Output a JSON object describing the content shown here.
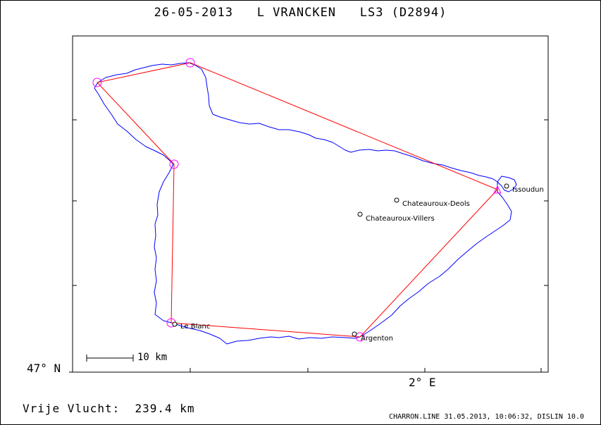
{
  "title": "26-05-2013   L VRANCKEN   LS3 (D2894)",
  "axes": {
    "lat_label": "47° N",
    "lon_label": "2° E"
  },
  "scale_bar": {
    "label": "10 km"
  },
  "distance": "Vrije Vlucht:  239.4 km",
  "footer": "CHARRON.LINE 31.05.2013, 10:06:32, DISLIN 10.0",
  "places": [
    {
      "name": "Issoudun",
      "lat": 46.947,
      "lon": 1.993
    },
    {
      "name": "Chateauroux-Deols",
      "lat": 46.86,
      "lon": 1.72
    },
    {
      "name": "Chateauroux-Villers",
      "lat": 46.84,
      "lon": 1.68
    },
    {
      "name": "Le Blanc",
      "lat": 46.63,
      "lon": 1.07
    },
    {
      "name": "Argenton",
      "lat": 46.59,
      "lon": 1.52
    }
  ],
  "colors": {
    "track": "#0000ff",
    "task": "#ff0000",
    "turnpoint": "#ff00ff",
    "axis": "#000000"
  }
}
